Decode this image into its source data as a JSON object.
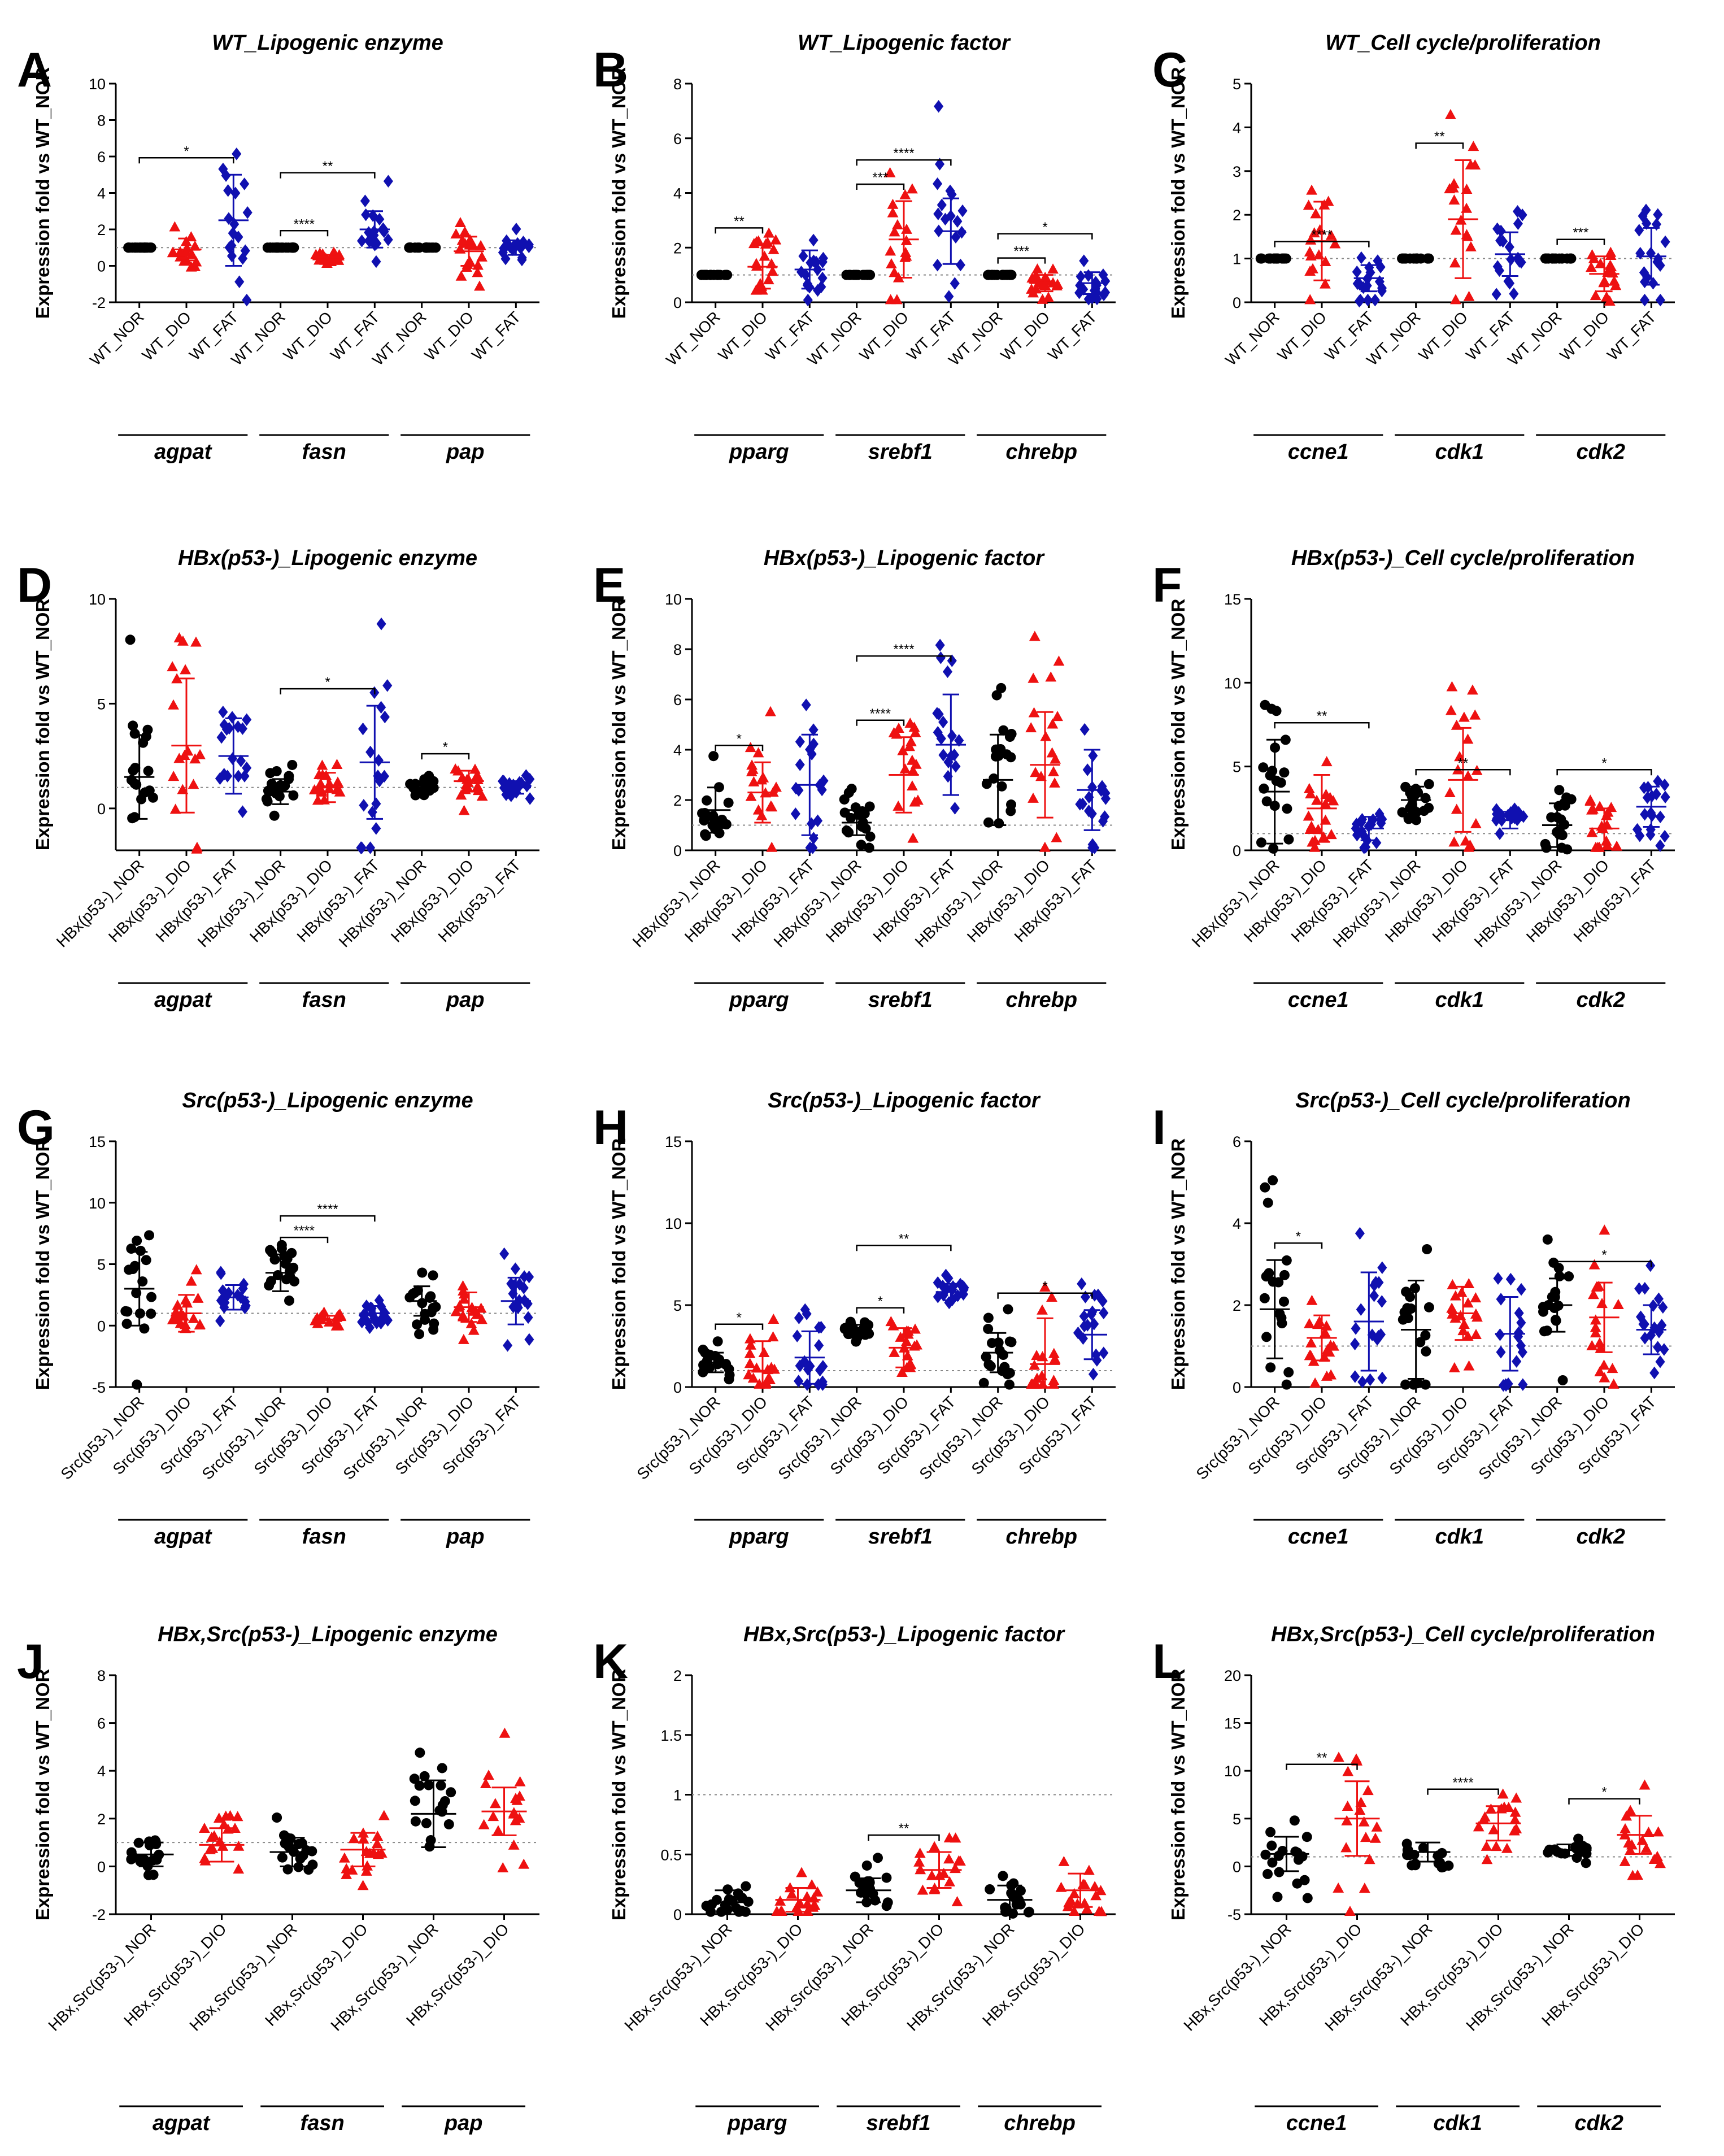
{
  "figure": {
    "panel_count": 12
  },
  "colors": {
    "NOR": "#000000",
    "DIO": "#ee1111",
    "FAT": "#1010b0",
    "axis": "#000000",
    "ref_line": "#888888"
  },
  "chart_data": [
    {
      "panel": "A",
      "type": "scatter",
      "title": "WT_Lipogenic enzyme",
      "ylabel": "Expression fold vs WT_NOR",
      "ylim": [
        -2,
        10
      ],
      "yticks": [
        -2,
        0,
        2,
        4,
        6,
        8,
        10
      ],
      "reference_line": 1,
      "x_labels": [
        "WT_NOR",
        "WT_DIO",
        "WT_FAT",
        "WT_NOR",
        "WT_DIO",
        "WT_FAT",
        "WT_NOR",
        "WT_DIO",
        "WT_FAT"
      ],
      "genes": [
        "agpat",
        "fasn",
        "pap"
      ],
      "series": [
        {
          "name": "NOR",
          "values": [
            1.0,
            1.0,
            1.0
          ]
        },
        {
          "name": "DIO",
          "values": [
            0.9,
            0.35,
            0.8
          ]
        },
        {
          "name": "FAT",
          "values": [
            2.5,
            2.0,
            1.0
          ]
        }
      ],
      "sd": [
        0,
        0.6,
        2.5,
        0,
        0.25,
        1.0,
        0,
        0.8,
        0.4
      ],
      "significance": [
        {
          "from": 0,
          "to": 2,
          "label": "*"
        },
        {
          "from": 3,
          "to": 4,
          "label": "****"
        },
        {
          "from": 3,
          "to": 5,
          "label": "**"
        }
      ]
    },
    {
      "panel": "B",
      "type": "scatter",
      "title": "WT_Lipogenic factor",
      "ylabel": "Expression fold vs WT_NOR",
      "ylim": [
        0,
        8
      ],
      "yticks": [
        0,
        2,
        4,
        6,
        8
      ],
      "reference_line": 1,
      "x_labels": [
        "WT_NOR",
        "WT_DIO",
        "WT_FAT",
        "WT_NOR",
        "WT_DIO",
        "WT_FAT",
        "WT_NOR",
        "WT_DIO",
        "WT_FAT"
      ],
      "genes": [
        "pparg",
        "srebf1",
        "chrebp"
      ],
      "series": [
        {
          "name": "NOR",
          "values": [
            1.0,
            1.0,
            1.0
          ]
        },
        {
          "name": "DIO",
          "values": [
            1.3,
            2.3,
            0.7
          ]
        },
        {
          "name": "FAT",
          "values": [
            1.2,
            2.6,
            0.7
          ]
        }
      ],
      "sd": [
        0,
        0.8,
        0.7,
        0,
        1.4,
        1.2,
        0,
        0.3,
        0.4
      ],
      "significance": [
        {
          "from": 0,
          "to": 1,
          "label": "**"
        },
        {
          "from": 3,
          "to": 4,
          "label": "***"
        },
        {
          "from": 3,
          "to": 5,
          "label": "****"
        },
        {
          "from": 6,
          "to": 7,
          "label": "***"
        },
        {
          "from": 6,
          "to": 8,
          "label": "*"
        }
      ]
    },
    {
      "panel": "C",
      "type": "scatter",
      "title": "WT_Cell cycle/proliferation",
      "ylabel": "Expression fold vs WT_NOR",
      "ylim": [
        0,
        5
      ],
      "yticks": [
        0,
        1,
        2,
        3,
        4,
        5
      ],
      "reference_line": 1,
      "x_labels": [
        "WT_NOR",
        "WT_DIO",
        "WT_FAT",
        "WT_NOR",
        "WT_DIO",
        "WT_FAT",
        "WT_NOR",
        "WT_DIO",
        "WT_FAT"
      ],
      "genes": [
        "ccne1",
        "cdk1",
        "cdk2"
      ],
      "series": [
        {
          "name": "NOR",
          "values": [
            1.0,
            1.0,
            1.0
          ]
        },
        {
          "name": "DIO",
          "values": [
            1.4,
            1.9,
            0.65
          ]
        },
        {
          "name": "FAT",
          "values": [
            0.55,
            1.1,
            1.05
          ]
        }
      ],
      "sd": [
        0,
        0.9,
        0.3,
        0,
        1.35,
        0.5,
        0,
        0.4,
        0.65
      ],
      "significance": [
        {
          "from": 0,
          "to": 2,
          "label": "****"
        },
        {
          "from": 3,
          "to": 4,
          "label": "**"
        },
        {
          "from": 6,
          "to": 7,
          "label": "***"
        }
      ]
    },
    {
      "panel": "D",
      "type": "scatter",
      "title": "HBx(p53-)_Lipogenic enzyme",
      "ylabel": "Expression fold vs WT_NOR",
      "ylim": [
        -2,
        10
      ],
      "yticks": [
        0,
        5,
        10
      ],
      "reference_line": 1,
      "x_labels": [
        "HBx(p53-)_NOR",
        "HBx(p53-)_DIO",
        "HBx(p53-)_FAT",
        "HBx(p53-)_NOR",
        "HBx(p53-)_DIO",
        "HBx(p53-)_FAT",
        "HBx(p53-)_NOR",
        "HBx(p53-)_DIO",
        "HBx(p53-)_FAT"
      ],
      "genes": [
        "agpat",
        "fasn",
        "pap"
      ],
      "series": [
        {
          "name": "NOR",
          "values": [
            1.5,
            0.8,
            1.0
          ]
        },
        {
          "name": "DIO",
          "values": [
            3.0,
            1.0,
            1.3
          ]
        },
        {
          "name": "FAT",
          "values": [
            2.5,
            2.2,
            1.0
          ]
        }
      ],
      "sd": [
        2.0,
        3.2,
        1.8,
        0.6,
        0.7,
        2.7,
        0.3,
        0.5,
        0.3
      ],
      "significance": [
        {
          "from": 3,
          "to": 5,
          "label": "*"
        },
        {
          "from": 6,
          "to": 7,
          "label": "*"
        }
      ]
    },
    {
      "panel": "E",
      "type": "scatter",
      "title": "HBx(p53-)_Lipogenic factor",
      "ylabel": "Expression fold vs WT_NOR",
      "ylim": [
        0,
        10
      ],
      "yticks": [
        0,
        2,
        4,
        6,
        8,
        10
      ],
      "reference_line": 1,
      "x_labels": [
        "HBx(p53-)_NOR",
        "HBx(p53-)_DIO",
        "HBx(p53-)_FAT",
        "HBx(p53-)_NOR",
        "HBx(p53-)_DIO",
        "HBx(p53-)_FAT",
        "HBx(p53-)_NOR",
        "HBx(p53-)_DIO",
        "HBx(p53-)_FAT"
      ],
      "genes": [
        "pparg",
        "srebf1",
        "chrebp"
      ],
      "series": [
        {
          "name": "NOR",
          "values": [
            1.6,
            1.1,
            2.8
          ]
        },
        {
          "name": "DIO",
          "values": [
            2.3,
            3.0,
            3.4
          ]
        },
        {
          "name": "FAT",
          "values": [
            2.6,
            4.2,
            2.4
          ]
        }
      ],
      "sd": [
        0.9,
        1.2,
        2.0,
        0.5,
        1.5,
        2.0,
        1.8,
        2.1,
        1.6
      ],
      "significance": [
        {
          "from": 0,
          "to": 1,
          "label": "*"
        },
        {
          "from": 3,
          "to": 4,
          "label": "****"
        },
        {
          "from": 3,
          "to": 5,
          "label": "****"
        }
      ]
    },
    {
      "panel": "F",
      "type": "scatter",
      "title": "HBx(p53-)_Cell cycle/proliferation",
      "ylabel": "Expression fold vs WT_NOR",
      "ylim": [
        0,
        15
      ],
      "yticks": [
        0,
        5,
        10,
        15
      ],
      "reference_line": 1,
      "x_labels": [
        "HBx(p53-)_NOR",
        "HBx(p53-)_DIO",
        "HBx(p53-)_FAT",
        "HBx(p53-)_NOR",
        "HBx(p53-)_DIO",
        "HBx(p53-)_FAT",
        "HBx(p53-)_NOR",
        "HBx(p53-)_DIO",
        "HBx(p53-)_FAT"
      ],
      "genes": [
        "ccne1",
        "cdk1",
        "cdk2"
      ],
      "series": [
        {
          "name": "NOR",
          "values": [
            3.5,
            3.0,
            1.5
          ]
        },
        {
          "name": "DIO",
          "values": [
            2.5,
            4.2,
            1.3
          ]
        },
        {
          "name": "FAT",
          "values": [
            1.3,
            1.8,
            2.6
          ]
        }
      ],
      "sd": [
        3.1,
        2.0,
        0.7,
        0.8,
        3.1,
        0.5,
        1.3,
        1.2,
        1.2
      ],
      "significance": [
        {
          "from": 0,
          "to": 2,
          "label": "**"
        },
        {
          "from": 3,
          "to": 5,
          "label": "**"
        },
        {
          "from": 6,
          "to": 8,
          "label": "*"
        }
      ]
    },
    {
      "panel": "G",
      "type": "scatter",
      "title": "Src(p53-)_Lipogenic enzyme",
      "ylabel": "Expression fold vs WT_NOR",
      "ylim": [
        -5,
        15
      ],
      "yticks": [
        -5,
        0,
        5,
        10,
        15
      ],
      "reference_line": 1,
      "x_labels": [
        "Src(p53-)_NOR",
        "Src(p53-)_DIO",
        "Src(p53-)_FAT",
        "Src(p53-)_NOR",
        "Src(p53-)_DIO",
        "Src(p53-)_FAT",
        "Src(p53-)_NOR",
        "Src(p53-)_DIO",
        "Src(p53-)_FAT"
      ],
      "genes": [
        "agpat",
        "fasn",
        "pap"
      ],
      "series": [
        {
          "name": "NOR",
          "values": [
            3.0,
            4.3,
            2.0
          ]
        },
        {
          "name": "DIO",
          "values": [
            1.0,
            0.5,
            1.5
          ]
        },
        {
          "name": "FAT",
          "values": [
            2.3,
            1.0,
            2.0
          ]
        }
      ],
      "sd": [
        3.0,
        1.5,
        1.0,
        1.5,
        0.3,
        0.6,
        1.2,
        1.2,
        1.9
      ],
      "significance": [
        {
          "from": 3,
          "to": 4,
          "label": "****"
        },
        {
          "from": 3,
          "to": 5,
          "label": "****"
        }
      ]
    },
    {
      "panel": "H",
      "type": "scatter",
      "title": "Src(p53-)_Lipogenic factor",
      "ylabel": "Expression fold vs WT_NOR",
      "ylim": [
        0,
        15
      ],
      "yticks": [
        0,
        5,
        10,
        15
      ],
      "reference_line": 1,
      "x_labels": [
        "Src(p53-)_NOR",
        "Src(p53-)_DIO",
        "Src(p53-)_FAT",
        "Src(p53-)_NOR",
        "Src(p53-)_DIO",
        "Src(p53-)_FAT",
        "Src(p53-)_NOR",
        "Src(p53-)_DIO",
        "Src(p53-)_FAT"
      ],
      "genes": [
        "pparg",
        "srebf1",
        "chrebp"
      ],
      "series": [
        {
          "name": "NOR",
          "values": [
            1.5,
            3.5,
            2.1
          ]
        },
        {
          "name": "DIO",
          "values": [
            1.0,
            2.4,
            1.4
          ]
        },
        {
          "name": "FAT",
          "values": [
            1.8,
            5.8,
            3.2
          ]
        }
      ],
      "sd": [
        0.6,
        1.8,
        1.6,
        0.3,
        1.2,
        0.5,
        1.2,
        2.8,
        1.5
      ],
      "significance": [
        {
          "from": 0,
          "to": 1,
          "label": "*"
        },
        {
          "from": 3,
          "to": 4,
          "label": "*"
        },
        {
          "from": 3,
          "to": 5,
          "label": "**"
        },
        {
          "from": 6,
          "to": 8,
          "label": "*"
        }
      ]
    },
    {
      "panel": "I",
      "type": "scatter",
      "title": "Src(p53-)_Cell cycle/proliferation",
      "ylabel": "Expression fold vs WT_NOR",
      "ylim": [
        0,
        6
      ],
      "yticks": [
        0,
        2,
        4,
        6
      ],
      "reference_line": 1,
      "x_labels": [
        "Src(p53-)_NOR",
        "Src(p53-)_DIO",
        "Src(p53-)_FAT",
        "Src(p53-)_NOR",
        "Src(p53-)_DIO",
        "Src(p53-)_FAT",
        "Src(p53-)_NOR",
        "Src(p53-)_DIO",
        "Src(p53-)_FAT"
      ],
      "genes": [
        "ccne1",
        "cdk1",
        "cdk2"
      ],
      "series": [
        {
          "name": "NOR",
          "values": [
            1.9,
            1.4,
            2.0
          ]
        },
        {
          "name": "DIO",
          "values": [
            1.2,
            1.8,
            1.7
          ]
        },
        {
          "name": "FAT",
          "values": [
            1.6,
            1.3,
            1.4
          ]
        }
      ],
      "sd": [
        1.2,
        0.55,
        1.2,
        1.2,
        0.65,
        0.9,
        0.65,
        0.85,
        0.6
      ],
      "significance": [
        {
          "from": 0,
          "to": 1,
          "label": "*"
        },
        {
          "from": 6,
          "to": 8,
          "label": "*"
        }
      ]
    },
    {
      "panel": "J",
      "type": "scatter",
      "title": "HBx,Src(p53-)_Lipogenic enzyme",
      "ylabel": "Expression fold vs WT_NOR",
      "ylim": [
        -2,
        8
      ],
      "yticks": [
        -2,
        0,
        2,
        4,
        6,
        8
      ],
      "reference_line": 1,
      "x_labels": [
        "HBx,Src(p53-)_NOR",
        "HBx,Src(p53-)_DIO",
        "HBx,Src(p53-)_NOR",
        "HBx,Src(p53-)_DIO",
        "HBx,Src(p53-)_NOR",
        "HBx,Src(p53-)_DIO"
      ],
      "genes": [
        "agpat",
        "fasn",
        "pap"
      ],
      "series": [
        {
          "name": "NOR",
          "values": [
            0.5,
            0.6,
            2.2
          ]
        },
        {
          "name": "DIO",
          "values": [
            0.9,
            0.7,
            2.3
          ]
        }
      ],
      "sd": [
        0.5,
        0.7,
        0.6,
        0.7,
        1.4,
        1.0
      ],
      "significance": []
    },
    {
      "panel": "K",
      "type": "scatter",
      "title": "HBx,Src(p53-)_Lipogenic factor",
      "ylabel": "Expression fold vs WT_NOR",
      "ylim": [
        0,
        2.0
      ],
      "yticks": [
        0.0,
        0.5,
        1.0,
        1.5,
        2.0
      ],
      "reference_line": 1,
      "x_labels": [
        "HBx,Src(p53-)_NOR",
        "HBx,Src(p53-)_DIO",
        "HBx,Src(p53-)_NOR",
        "HBx,Src(p53-)_DIO",
        "HBx,Src(p53-)_NOR",
        "HBx,Src(p53-)_DIO"
      ],
      "genes": [
        "pparg",
        "srebf1",
        "chrebp"
      ],
      "series": [
        {
          "name": "NOR",
          "values": [
            0.1,
            0.2,
            0.12
          ]
        },
        {
          "name": "DIO",
          "values": [
            0.12,
            0.37,
            0.2
          ]
        }
      ],
      "sd": [
        0.1,
        0.1,
        0.1,
        0.15,
        0.12,
        0.14
      ],
      "significance": [
        {
          "from": 2,
          "to": 3,
          "label": "**"
        }
      ]
    },
    {
      "panel": "L",
      "type": "scatter",
      "title": "HBx,Src(p53-)_Cell cycle/proliferation",
      "ylabel": "Expression fold vs WT_NOR",
      "ylim": [
        -5,
        20
      ],
      "yticks": [
        -5,
        0,
        5,
        10,
        15,
        20
      ],
      "reference_line": 1,
      "x_labels": [
        "HBx,Src(p53-)_NOR",
        "HBx,Src(p53-)_DIO",
        "HBx,Src(p53-)_NOR",
        "HBx,Src(p53-)_DIO",
        "HBx,Src(p53-)_NOR",
        "HBx,Src(p53-)_DIO"
      ],
      "genes": [
        "ccne1",
        "cdk1",
        "cdk2"
      ],
      "series": [
        {
          "name": "NOR",
          "values": [
            1.3,
            1.5,
            1.7
          ]
        },
        {
          "name": "DIO",
          "values": [
            5.0,
            4.5,
            3.3
          ]
        }
      ],
      "sd": [
        1.8,
        3.9,
        1.0,
        1.8,
        0.6,
        2.0
      ],
      "significance": [
        {
          "from": 0,
          "to": 1,
          "label": "**"
        },
        {
          "from": 2,
          "to": 3,
          "label": "****"
        },
        {
          "from": 4,
          "to": 5,
          "label": "*"
        }
      ]
    }
  ]
}
